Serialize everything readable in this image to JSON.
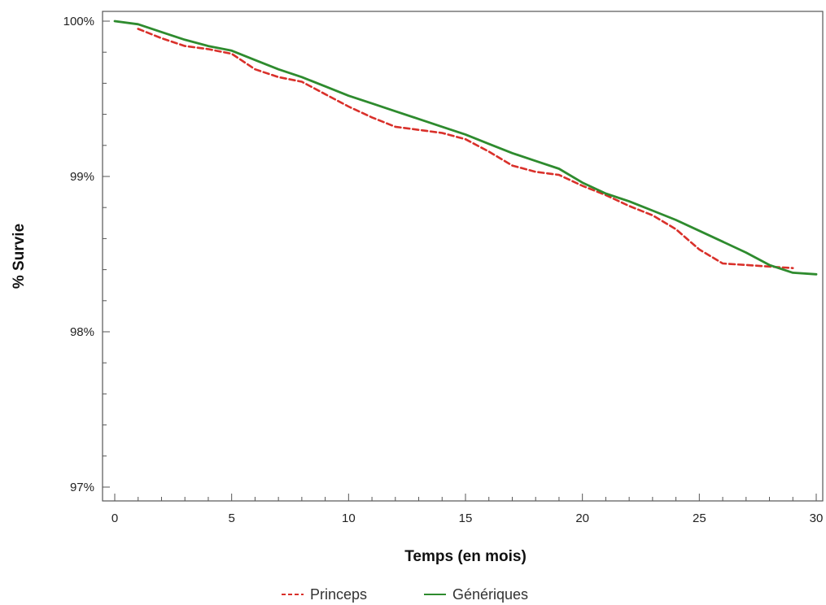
{
  "chart_data": {
    "type": "line",
    "xlabel": "Temps (en mois)",
    "ylabel": "% Survie",
    "xlim": [
      0,
      30
    ],
    "ylim": [
      97,
      100
    ],
    "x_ticks": [
      0,
      5,
      10,
      15,
      20,
      25,
      30
    ],
    "x_tick_labels": [
      "0",
      "5",
      "10",
      "15",
      "20",
      "25",
      "30"
    ],
    "y_ticks": [
      97,
      98,
      99,
      100
    ],
    "y_tick_labels": [
      "97%",
      "98%",
      "99%",
      "100%"
    ],
    "grid": false,
    "legend_position": "bottom",
    "series": [
      {
        "name": "Princeps",
        "style": "dashed",
        "color": "#d9302a",
        "x": [
          1,
          2,
          3,
          4,
          5,
          6,
          7,
          8,
          9,
          10,
          11,
          12,
          13,
          14,
          15,
          16,
          17,
          18,
          19,
          20,
          21,
          22,
          23,
          24,
          25,
          26,
          27,
          28,
          29
        ],
        "y": [
          99.95,
          99.89,
          99.84,
          99.82,
          99.79,
          99.69,
          99.64,
          99.61,
          99.53,
          99.45,
          99.38,
          99.32,
          99.3,
          99.28,
          99.24,
          99.16,
          99.07,
          99.03,
          99.01,
          98.94,
          98.88,
          98.81,
          98.75,
          98.66,
          98.53,
          98.44,
          98.43,
          98.42,
          98.41
        ]
      },
      {
        "name": "Génériques",
        "style": "solid",
        "color": "#2e8b2e",
        "x": [
          0,
          1,
          2,
          3,
          4,
          5,
          6,
          7,
          8,
          9,
          10,
          11,
          12,
          13,
          14,
          15,
          16,
          17,
          18,
          19,
          20,
          21,
          22,
          23,
          24,
          25,
          26,
          27,
          28,
          29,
          30
        ],
        "y": [
          100.0,
          99.98,
          99.93,
          99.88,
          99.84,
          99.81,
          99.75,
          99.69,
          99.64,
          99.58,
          99.52,
          99.47,
          99.42,
          99.37,
          99.32,
          99.27,
          99.21,
          99.15,
          99.1,
          99.05,
          98.96,
          98.89,
          98.84,
          98.78,
          98.72,
          98.65,
          98.58,
          98.51,
          98.43,
          98.38,
          98.37
        ]
      }
    ]
  }
}
